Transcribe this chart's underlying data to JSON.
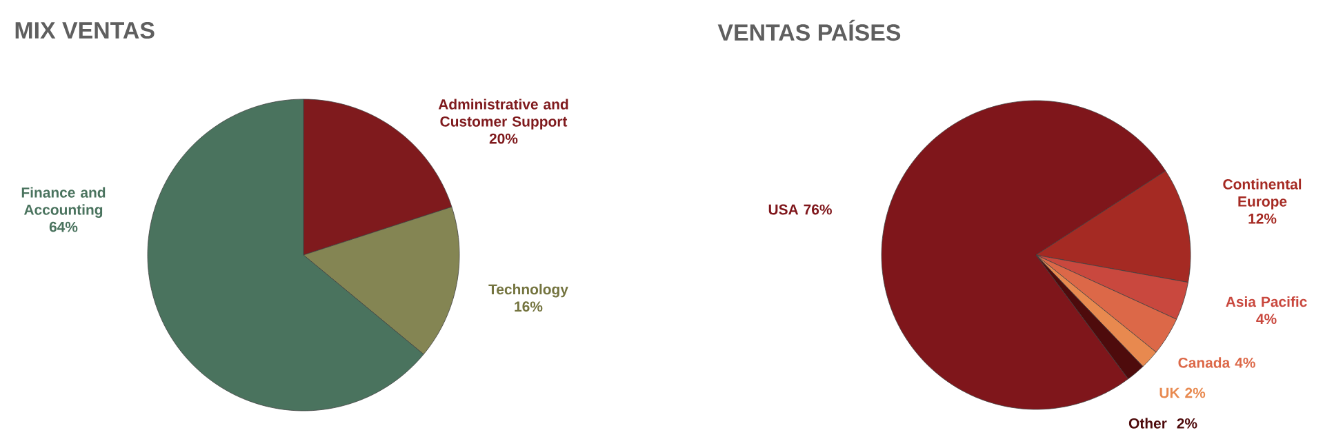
{
  "chart_data": [
    {
      "type": "pie",
      "title": "MIX VENTAS",
      "categories": [
        "Administrative and Customer Support",
        "Technology",
        "Finance and Accounting"
      ],
      "values": [
        20,
        16,
        64
      ],
      "value_labels": [
        "20%",
        "16%",
        "64%"
      ],
      "colors": [
        "#7f1a1d",
        "#848553",
        "#4a735e"
      ]
    },
    {
      "type": "pie",
      "title": "VENTAS PAÍSES",
      "categories": [
        "USA",
        "Continental Europe",
        "Asia Pacific",
        "Canada",
        "UK",
        "Other"
      ],
      "values": [
        76,
        12,
        4,
        4,
        2,
        2
      ],
      "value_labels": [
        "76%",
        "12%",
        "4%",
        "4%",
        "2%",
        "2%"
      ],
      "colors": [
        "#7f161b",
        "#a52a23",
        "#c9483e",
        "#dc6848",
        "#e8894f",
        "#4e0b0c"
      ]
    }
  ]
}
